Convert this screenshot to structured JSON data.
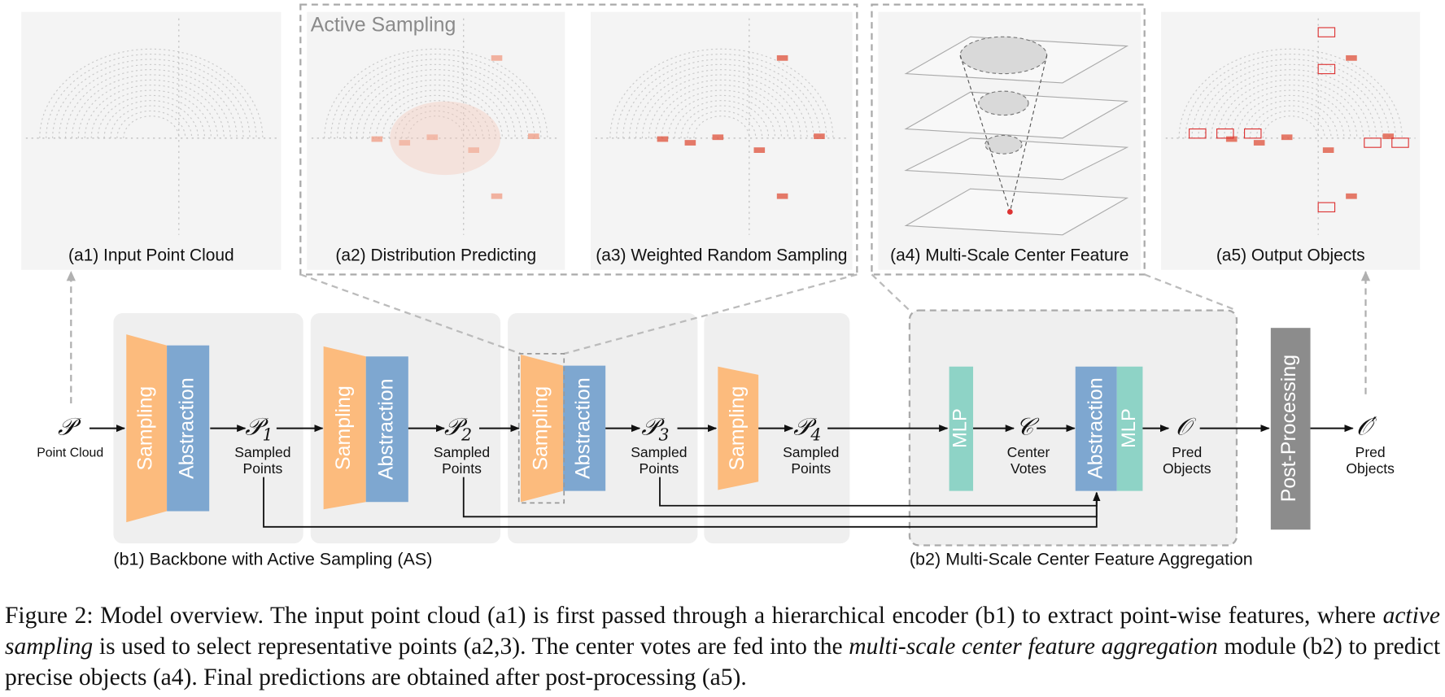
{
  "figure": {
    "panels": [
      "(a1) Input Point Cloud",
      "(a2) Distribution Predicting",
      "(a3) Weighted Random Sampling",
      "(a4) Multi-Scale Center Feature",
      "(a5) Output Objects"
    ],
    "active_sampling": "Active Sampling",
    "stages": [
      {
        "sampling": "Sampling",
        "abstraction": "Abstraction"
      },
      {
        "sampling": "Sampling",
        "abstraction": "Abstraction"
      },
      {
        "sampling": "Sampling",
        "abstraction": "Abstraction"
      },
      {
        "sampling": "Sampling"
      }
    ],
    "vote_mlp": "MLP",
    "aggregation": {
      "abstraction": "Abstraction",
      "mlp": "MLP"
    },
    "post_processing": "Post-Processing",
    "nodes": [
      {
        "symbol": "𝒫",
        "label": [
          "Point Cloud"
        ]
      },
      {
        "symbol": "𝒫",
        "subscript": "1",
        "label": [
          "Sampled",
          "Points"
        ]
      },
      {
        "symbol": "𝒫",
        "subscript": "2",
        "label": [
          "Sampled",
          "Points"
        ]
      },
      {
        "symbol": "𝒫",
        "subscript": "3",
        "label": [
          "Sampled",
          "Points"
        ]
      },
      {
        "symbol": "𝒫",
        "subscript": "4",
        "label": [
          "Sampled",
          "Points"
        ]
      },
      {
        "symbol": "𝒞",
        "label": [
          "Center",
          "Votes"
        ]
      },
      {
        "symbol": "𝒪",
        "label": [
          "Pred",
          "Objects"
        ]
      },
      {
        "symbol": "𝒪′",
        "label": [
          "Pred",
          "Objects"
        ]
      }
    ],
    "sections": [
      "(b1) Backbone with Active Sampling (AS)",
      "(b2) Multi-Scale Center Feature Aggregation"
    ]
  },
  "caption": [
    {
      "text": "Figure 2: Model overview. The input point cloud (a1) is first passed through a hierarchical encoder (b1) to extract point-wise features, where ",
      "italic": false
    },
    {
      "text": "active sampling",
      "italic": true
    },
    {
      "text": " is used to select representative points (a2,3). The center votes are fed into the ",
      "italic": false
    },
    {
      "text": "multi-scale center feature aggregation",
      "italic": true
    },
    {
      "text": " module (b2) to predict precise objects (a4). Final predictions are obtained after post-processing (a5).",
      "italic": false
    }
  ]
}
